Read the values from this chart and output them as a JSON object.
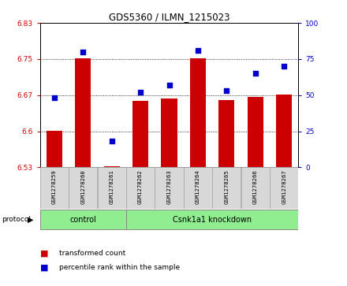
{
  "title": "GDS5360 / ILMN_1215023",
  "samples": [
    "GSM1278259",
    "GSM1278260",
    "GSM1278261",
    "GSM1278262",
    "GSM1278263",
    "GSM1278264",
    "GSM1278265",
    "GSM1278266",
    "GSM1278267"
  ],
  "transformed_counts": [
    6.601,
    6.751,
    6.527,
    6.663,
    6.668,
    6.751,
    6.664,
    6.672,
    6.676
  ],
  "percentile_ranks": [
    48,
    80,
    18,
    52,
    57,
    81,
    53,
    65,
    70
  ],
  "ylim_left": [
    6.525,
    6.825
  ],
  "ylim_right": [
    0,
    100
  ],
  "yticks_left": [
    6.525,
    6.6,
    6.675,
    6.75,
    6.825
  ],
  "yticks_right": [
    0,
    25,
    50,
    75,
    100
  ],
  "bar_color": "#cc0000",
  "dot_color": "#0000cc",
  "control_samples": 3,
  "control_label": "control",
  "treatment_label": "Csnk1a1 knockdown",
  "protocol_label": "protocol",
  "legend_bar": "transformed count",
  "legend_dot": "percentile rank within the sample",
  "group_color": "#90ee90",
  "bg_color": "#d8d8d8",
  "base_value": 6.525
}
